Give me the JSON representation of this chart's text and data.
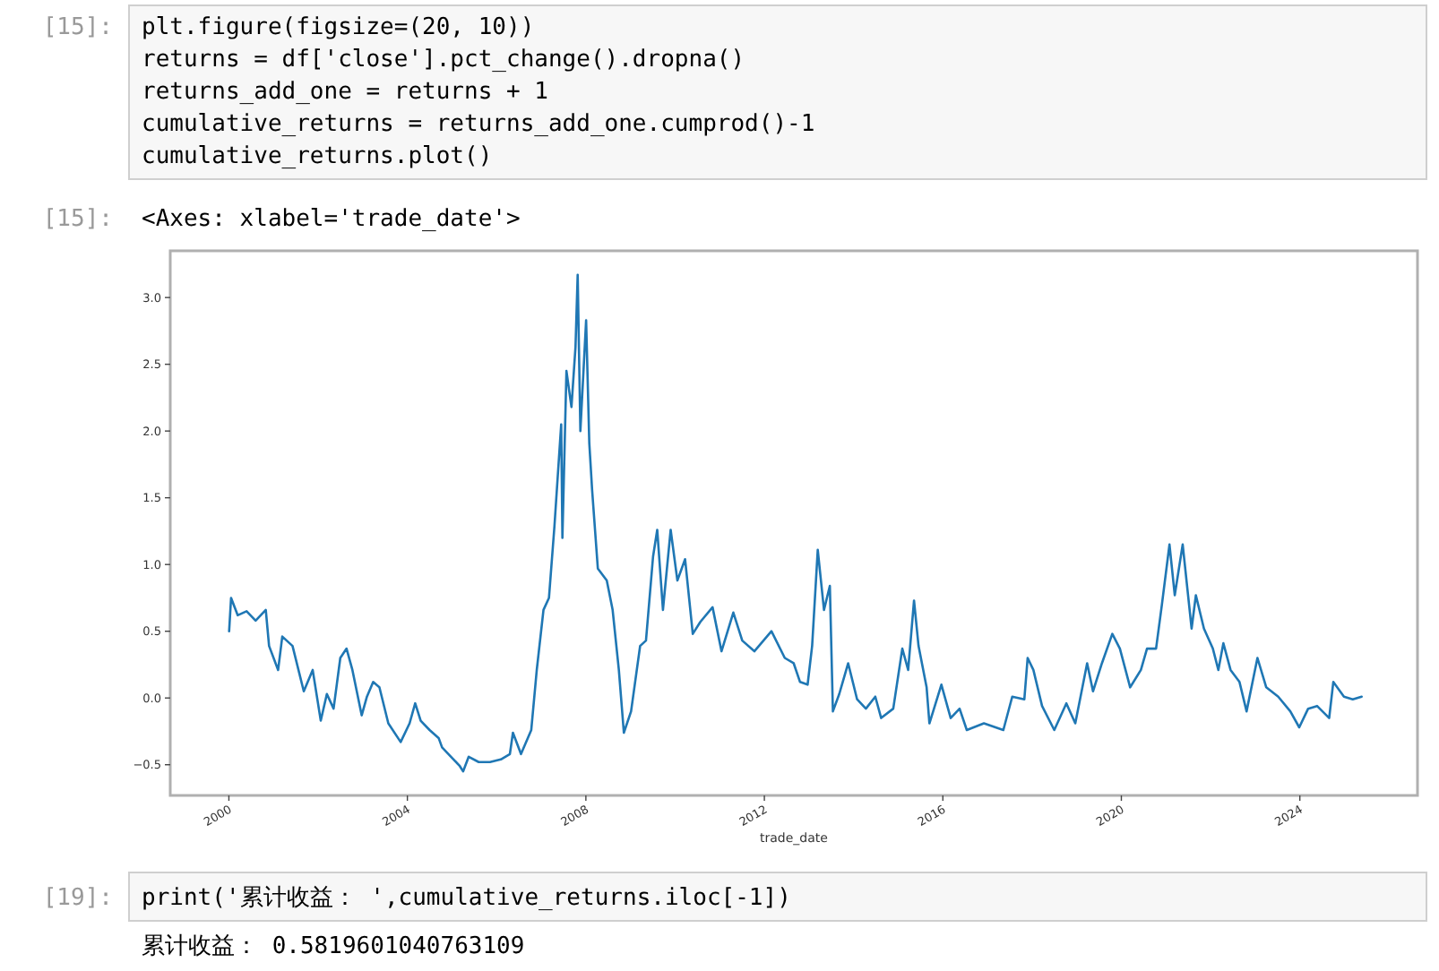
{
  "chart_data": {
    "type": "line",
    "xlabel": "trade_date",
    "x": [
      "2000-01-03",
      "2000-01-19",
      "2000-03-13",
      "2000-05-25",
      "2000-08-07",
      "2000-10-29",
      "2000-11-25",
      "2001-02-07",
      "2001-03-13",
      "2001-06-05",
      "2001-09-05",
      "2001-11-17",
      "2002-01-22",
      "2002-03-13",
      "2002-05-07",
      "2002-07-01",
      "2002-08-21",
      "2002-10-08",
      "2002-12-23",
      "2003-02-04",
      "2003-03-27",
      "2003-05-17",
      "2003-07-29",
      "2003-11-07",
      "2004-01-19",
      "2004-03-05",
      "2004-04-19",
      "2004-07-01",
      "2004-09-13",
      "2004-10-11",
      "2004-12-23",
      "2005-03-05",
      "2005-04-01",
      "2005-05-17",
      "2005-08-07",
      "2005-11-07",
      "2006-02-04",
      "2006-04-19",
      "2006-05-14",
      "2006-07-19",
      "2006-10-11",
      "2006-11-25",
      "2007-01-19",
      "2007-03-05",
      "2007-04-19",
      "2007-06-13",
      "2007-06-23",
      "2007-07-26",
      "2007-09-05",
      "2007-10-08",
      "2007-10-26",
      "2007-11-17",
      "2008-01-03",
      "2008-01-29",
      "2008-02-21",
      "2008-04-08",
      "2008-06-20",
      "2008-08-07",
      "2008-09-27",
      "2008-11-07",
      "2009-01-05",
      "2009-03-20",
      "2009-05-07",
      "2009-07-04",
      "2009-08-07",
      "2009-09-23",
      "2009-11-25",
      "2010-01-19",
      "2010-03-23",
      "2010-05-25",
      "2010-07-26",
      "2010-11-03",
      "2011-01-15",
      "2011-04-22",
      "2011-07-04",
      "2011-10-11",
      "2012-02-28",
      "2012-06-16",
      "2012-08-28",
      "2012-10-19",
      "2012-12-20",
      "2013-01-26",
      "2013-03-13",
      "2013-05-03",
      "2013-06-20",
      "2013-07-15",
      "2013-09-05",
      "2013-11-17",
      "2014-01-29",
      "2014-04-11",
      "2014-06-27",
      "2014-08-14",
      "2014-11-21",
      "2015-02-03",
      "2015-03-23",
      "2015-05-10",
      "2015-06-16",
      "2015-08-21",
      "2015-09-13",
      "2015-12-20",
      "2016-03-05",
      "2016-05-17",
      "2016-07-15",
      "2016-12-02",
      "2017-05-10",
      "2017-07-22",
      "2017-10-29",
      "2017-11-25",
      "2018-01-11",
      "2018-03-23",
      "2018-07-01",
      "2018-10-08",
      "2018-12-20",
      "2019-03-27",
      "2019-05-14",
      "2019-07-26",
      "2019-10-19",
      "2019-12-20",
      "2020-03-13",
      "2020-06-09",
      "2020-07-29",
      "2020-10-11",
      "2020-11-28",
      "2021-01-29",
      "2021-03-13",
      "2021-05-17",
      "2021-07-29",
      "2021-09-02",
      "2021-11-07",
      "2022-01-19",
      "2022-03-05",
      "2022-04-15",
      "2022-06-13",
      "2022-08-25",
      "2022-10-22",
      "2023-01-19",
      "2023-04-01",
      "2023-07-08",
      "2023-10-15",
      "2023-12-27",
      "2024-03-09",
      "2024-05-21",
      "2024-08-28",
      "2024-10-01",
      "2024-12-27",
      "2025-03-09",
      "2025-05-21"
    ],
    "series": [
      {
        "color": "#1f77b4",
        "values": [
          0.5,
          0.75,
          0.62,
          0.65,
          0.58,
          0.66,
          0.39,
          0.21,
          0.46,
          0.39,
          0.05,
          0.21,
          -0.17,
          0.03,
          -0.08,
          0.3,
          0.37,
          0.21,
          -0.13,
          0.01,
          0.12,
          0.08,
          -0.19,
          -0.33,
          -0.19,
          -0.04,
          -0.17,
          -0.24,
          -0.3,
          -0.37,
          -0.44,
          -0.51,
          -0.55,
          -0.44,
          -0.48,
          -0.48,
          -0.46,
          -0.42,
          -0.26,
          -0.42,
          -0.24,
          0.21,
          0.66,
          0.75,
          1.29,
          2.05,
          1.2,
          2.45,
          2.18,
          2.63,
          3.17,
          2.0,
          2.83,
          1.91,
          1.56,
          0.97,
          0.88,
          0.66,
          0.21,
          -0.26,
          -0.1,
          0.39,
          0.43,
          1.06,
          1.26,
          0.66,
          1.26,
          0.88,
          1.04,
          0.48,
          0.57,
          0.68,
          0.35,
          0.64,
          0.43,
          0.35,
          0.5,
          0.3,
          0.26,
          0.12,
          0.1,
          0.39,
          1.11,
          0.66,
          0.84,
          -0.1,
          0.03,
          0.26,
          -0.01,
          -0.08,
          0.01,
          -0.15,
          -0.08,
          0.37,
          0.21,
          0.73,
          0.39,
          0.08,
          -0.19,
          0.1,
          -0.15,
          -0.08,
          -0.24,
          -0.19,
          -0.24,
          0.01,
          -0.01,
          0.3,
          0.21,
          -0.06,
          -0.24,
          -0.04,
          -0.19,
          0.26,
          0.05,
          0.26,
          0.48,
          0.37,
          0.08,
          0.21,
          0.37,
          0.37,
          0.7,
          1.15,
          0.77,
          1.15,
          0.52,
          0.77,
          0.52,
          0.37,
          0.21,
          0.41,
          0.21,
          0.12,
          -0.1,
          0.3,
          0.08,
          0.01,
          -0.1,
          -0.22,
          -0.08,
          -0.06,
          -0.15,
          0.12,
          0.01,
          -0.01,
          0.01
        ]
      }
    ],
    "xlim": [
      "1998-09-08",
      "2026-08-21"
    ],
    "ylim": [
      -0.73,
      3.35
    ],
    "xticks": [
      {
        "value": "2000-01-01",
        "label": "2000"
      },
      {
        "value": "2004-01-01",
        "label": "2004"
      },
      {
        "value": "2008-01-01",
        "label": "2008"
      },
      {
        "value": "2012-01-01",
        "label": "2012"
      },
      {
        "value": "2016-01-01",
        "label": "2016"
      },
      {
        "value": "2020-01-01",
        "label": "2020"
      },
      {
        "value": "2024-01-01",
        "label": "2024"
      }
    ],
    "yticks": [
      {
        "value": -0.5,
        "label": "−0.5"
      },
      {
        "value": 0,
        "label": "0.0"
      },
      0.5,
      {
        "value": 1,
        "label": "1.0"
      },
      1.5,
      {
        "value": 2,
        "label": "2.0"
      },
      2.5,
      {
        "value": 3,
        "label": "3.0"
      }
    ],
    "annotations": [
      "[15]:",
      "plt.figure(figsize=(20, 10))",
      "returns = df['close'].pct_change().dropna()",
      "returns_add_one = returns + 1",
      "cumulative_returns = returns_add_one.cumprod()-1",
      "cumulative_returns.plot()",
      "[15]:",
      "<Axes: xlabel='trade_date'>",
      "[19]:",
      "print('累计收益： ',cumulative_returns.iloc[-1])",
      "累计收益：  0.5819601040763109"
    ]
  }
}
